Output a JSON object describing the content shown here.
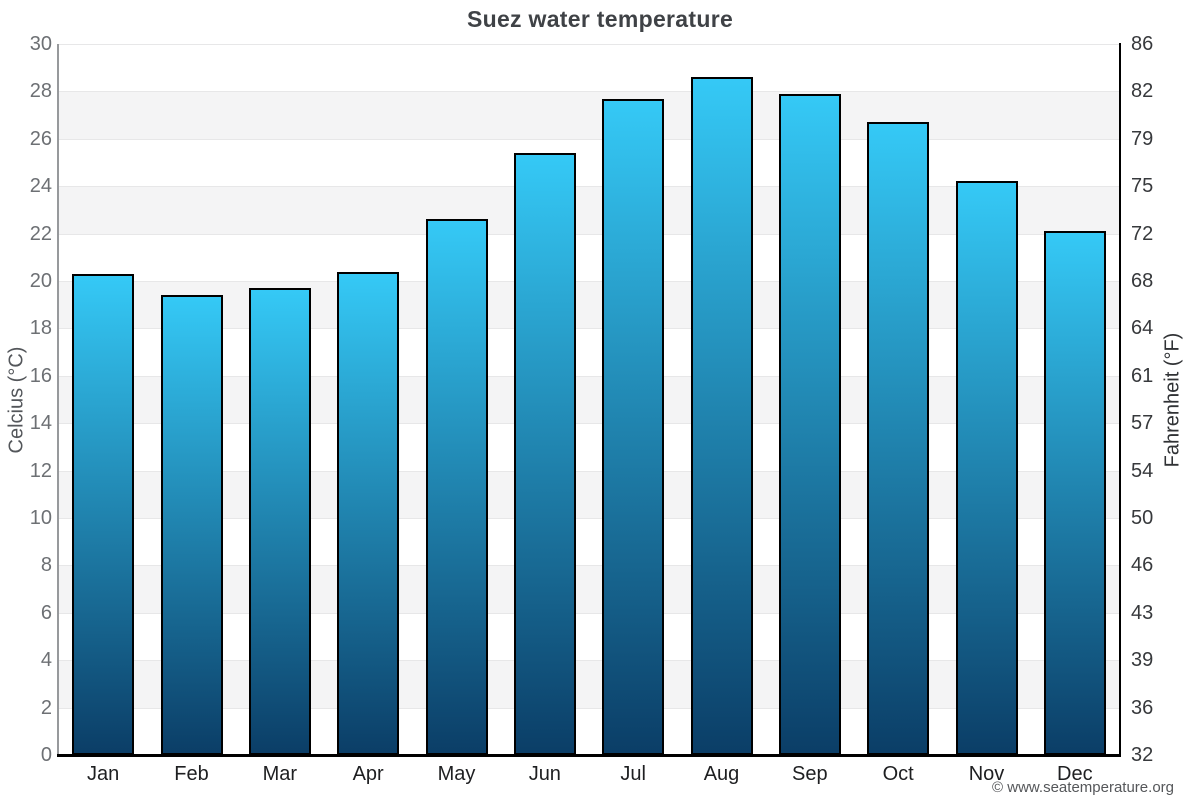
{
  "title": "Suez water temperature",
  "footer": "© www.seatemperature.org",
  "y_axis_left": {
    "label": "Celcius (°C)",
    "ticks": [
      30,
      28,
      26,
      24,
      22,
      20,
      18,
      16,
      14,
      12,
      10,
      8,
      6,
      4,
      2,
      0
    ]
  },
  "y_axis_right": {
    "label": "Fahrenheit (°F)",
    "ticks": [
      86,
      82,
      79,
      75,
      72,
      68,
      64,
      61,
      57,
      54,
      50,
      46,
      43,
      39,
      36,
      32
    ]
  },
  "chart_data": {
    "type": "bar",
    "title": "Suez water temperature",
    "categories": [
      "Jan",
      "Feb",
      "Mar",
      "Apr",
      "May",
      "Jun",
      "Jul",
      "Aug",
      "Sep",
      "Oct",
      "Nov",
      "Dec"
    ],
    "values": [
      20.3,
      19.4,
      19.7,
      20.4,
      22.6,
      25.4,
      27.7,
      28.6,
      27.9,
      26.7,
      24.2,
      22.1
    ],
    "unit": "°C",
    "xlabel": "",
    "ylabel": "Celcius (°C)",
    "y2label": "Fahrenheit (°F)",
    "ylim": [
      0,
      30
    ],
    "y_tick_step": 2,
    "y2_tick_labels": [
      86,
      82,
      79,
      75,
      72,
      68,
      64,
      61,
      57,
      54,
      50,
      46,
      43,
      39,
      36,
      32
    ],
    "grid": "horizontal gridlines with alternating shaded bands",
    "legend": "none"
  },
  "colors": {
    "bar_gradient_top": "#35c9f6",
    "bar_gradient_bottom": "#0b3e67",
    "bar_border": "#000000",
    "band": "#f4f4f5",
    "gridline": "#e7e7e8",
    "axis_left_line": "#97999c",
    "axis_black": "#000000",
    "title_text": "#3f4246",
    "tick_left_text": "#6d7074",
    "tick_right_text": "#37393c",
    "month_text": "#1e1f21",
    "ylabel_left_text": "#53565a",
    "ylabel_right_text": "#303235",
    "footer_text": "#55575a"
  }
}
